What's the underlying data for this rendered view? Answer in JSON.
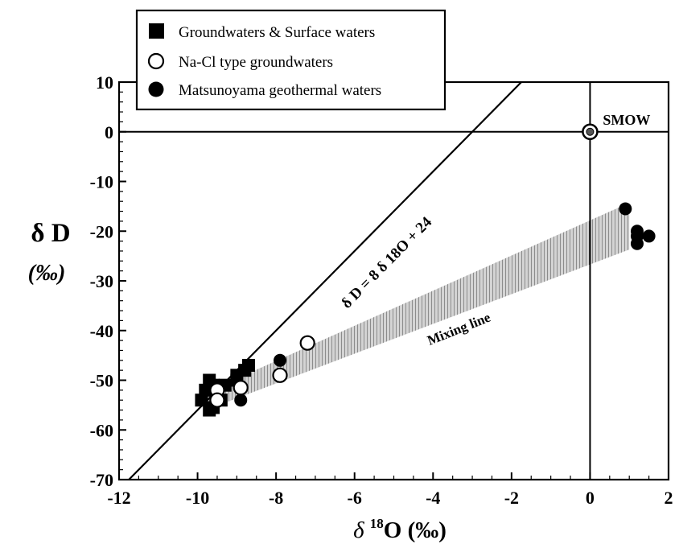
{
  "chart_data": {
    "type": "scatter",
    "xlabel": {
      "prefix": "δ ",
      "sup": "18",
      "main": "O (‰)"
    },
    "ylabel": {
      "line1": "δ D",
      "line2": "(‰)"
    },
    "xlim": [
      -12,
      2
    ],
    "ylim": [
      -70,
      10
    ],
    "x_ticks": [
      -12,
      -10,
      -8,
      -6,
      -4,
      -2,
      0,
      2
    ],
    "y_ticks": [
      10,
      0,
      -10,
      -20,
      -30,
      -40,
      -50,
      -60,
      -70
    ],
    "reference_lines": {
      "vertical_x": 0,
      "horizontal_y": 0
    },
    "meteoric_line": {
      "slope": 8,
      "intercept": 24,
      "label": "δ D = 8 δ 18O + 24"
    },
    "mixing_band": {
      "label": "Mixing line",
      "from": [
        -9.8,
        -53
      ],
      "to": [
        1.0,
        -19
      ],
      "color": "#9a9a9a"
    },
    "smow": {
      "x": 0,
      "y": 0,
      "label": "SMOW"
    },
    "legend_position": "top-left",
    "series": [
      {
        "name": "Groundwaters & Surface waters",
        "marker": "filled-square",
        "points": [
          {
            "x": -9.7,
            "y": -50
          },
          {
            "x": -9.6,
            "y": -51
          },
          {
            "x": -9.8,
            "y": -52
          },
          {
            "x": -9.5,
            "y": -53
          },
          {
            "x": -9.9,
            "y": -54
          },
          {
            "x": -9.6,
            "y": -55.5
          },
          {
            "x": -9.7,
            "y": -56
          },
          {
            "x": -9.4,
            "y": -54
          },
          {
            "x": -9.3,
            "y": -51
          },
          {
            "x": -9.0,
            "y": -50
          },
          {
            "x": -9.0,
            "y": -49
          },
          {
            "x": -8.8,
            "y": -48
          },
          {
            "x": -8.7,
            "y": -47
          }
        ]
      },
      {
        "name": "Na-Cl type groundwaters",
        "marker": "open-circle",
        "points": [
          {
            "x": -9.5,
            "y": -52
          },
          {
            "x": -9.5,
            "y": -54
          },
          {
            "x": -8.9,
            "y": -51.5
          },
          {
            "x": -7.9,
            "y": -49
          },
          {
            "x": -7.2,
            "y": -42.5
          }
        ]
      },
      {
        "name": "Matsunoyama geothermal waters",
        "marker": "filled-circle",
        "points": [
          {
            "x": -8.9,
            "y": -54
          },
          {
            "x": -7.9,
            "y": -46
          },
          {
            "x": 0.9,
            "y": -15.5
          },
          {
            "x": 1.2,
            "y": -20
          },
          {
            "x": 1.2,
            "y": -21
          },
          {
            "x": 1.2,
            "y": -22.5
          },
          {
            "x": 1.5,
            "y": -21
          }
        ]
      }
    ]
  }
}
